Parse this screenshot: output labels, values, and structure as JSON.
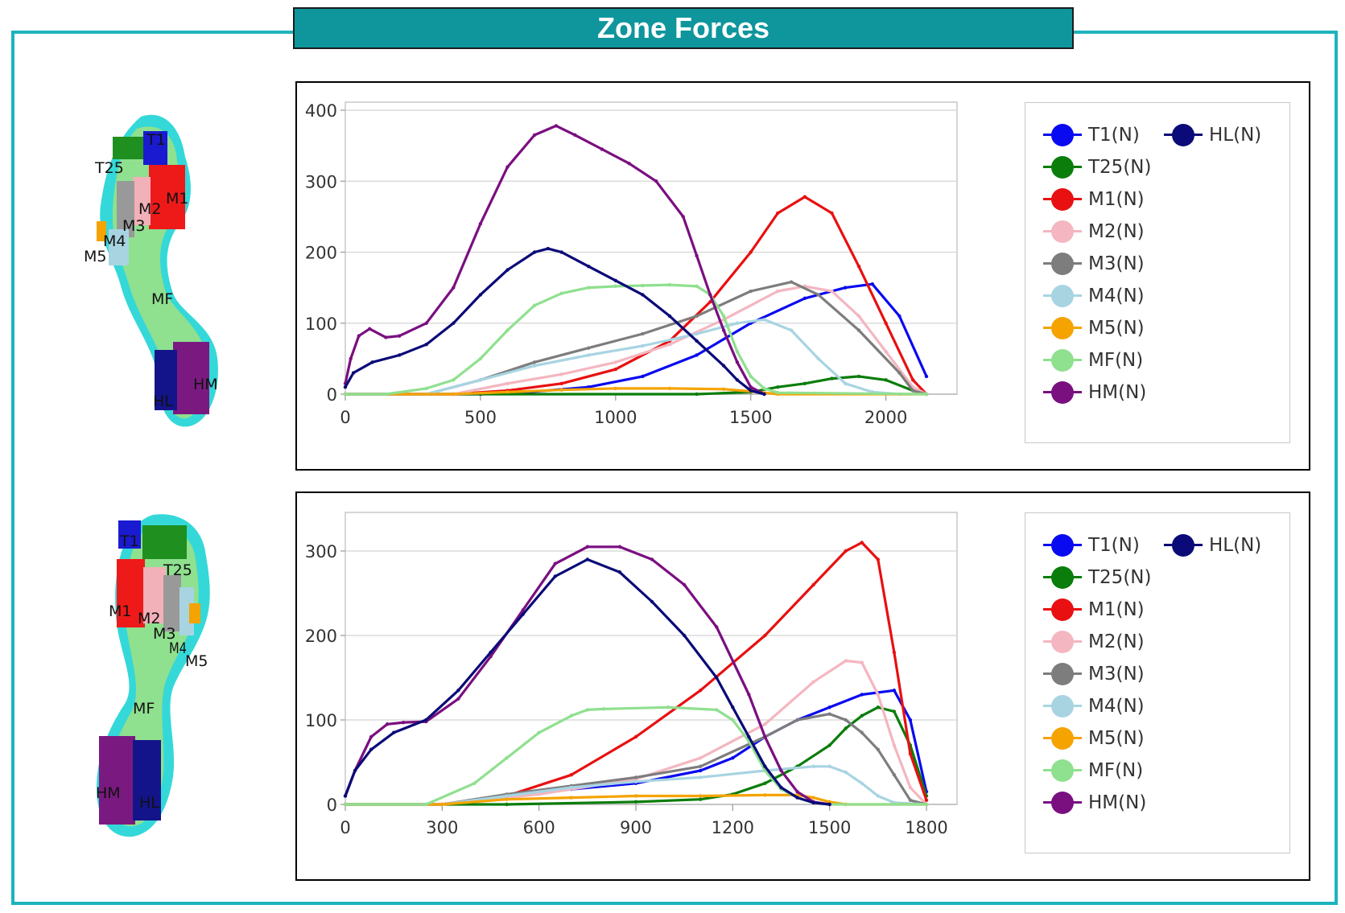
{
  "title": "Zone Forces",
  "colors": {
    "T1": "#0a0af0",
    "T25": "#0a7d0a",
    "M1": "#e81010",
    "M2": "#f4b6c0",
    "M3": "#7d7d7d",
    "M4": "#a8d4e2",
    "M5": "#f5a300",
    "MF": "#8fe08f",
    "HM": "#7a0f80",
    "HL": "#0a0a78"
  },
  "foot_top": {
    "zones": [
      "T1",
      "T25",
      "M1",
      "M2",
      "M3",
      "M4",
      "M5",
      "MF",
      "HM",
      "HL"
    ]
  },
  "foot_bottom": {
    "zones": [
      "T1",
      "T25",
      "M1",
      "M2",
      "M3",
      "M4",
      "M5",
      "MF",
      "HM",
      "HL"
    ],
    "m4_label": "M4"
  },
  "chart_data": [
    {
      "type": "line",
      "xlim": [
        0,
        2150
      ],
      "ylim": [
        0,
        400
      ],
      "xticks": [
        "0",
        "500",
        "1000",
        "1500",
        "2000"
      ],
      "yticks": [
        "0",
        "100",
        "200",
        "300",
        "400"
      ],
      "grid": true,
      "legend": "right",
      "series": [
        {
          "name": "T1(N)",
          "x": [
            0,
            500,
            650,
            900,
            1100,
            1300,
            1500,
            1700,
            1850,
            1950,
            2050,
            2150
          ],
          "y": [
            0,
            0,
            2,
            10,
            25,
            55,
            100,
            135,
            150,
            155,
            110,
            25
          ]
        },
        {
          "name": "T25(N)",
          "x": [
            0,
            1300,
            1500,
            1600,
            1700,
            1800,
            1900,
            2000,
            2100,
            2150
          ],
          "y": [
            0,
            0,
            3,
            10,
            15,
            22,
            25,
            20,
            5,
            0
          ]
        },
        {
          "name": "M1(N)",
          "x": [
            0,
            400,
            600,
            800,
            1000,
            1200,
            1350,
            1500,
            1600,
            1700,
            1800,
            1900,
            2000,
            2100,
            2150
          ],
          "y": [
            0,
            0,
            5,
            15,
            35,
            75,
            130,
            200,
            255,
            278,
            255,
            180,
            100,
            20,
            0
          ]
        },
        {
          "name": "M2(N)",
          "x": [
            0,
            400,
            600,
            800,
            1000,
            1200,
            1400,
            1600,
            1700,
            1800,
            1900,
            2000,
            2100,
            2150
          ],
          "y": [
            0,
            0,
            15,
            28,
            45,
            70,
            105,
            145,
            152,
            145,
            110,
            60,
            10,
            0
          ]
        },
        {
          "name": "M3(N)",
          "x": [
            0,
            300,
            500,
            700,
            900,
            1100,
            1300,
            1500,
            1650,
            1750,
            1900,
            2050,
            2100,
            2150
          ],
          "y": [
            0,
            0,
            20,
            45,
            65,
            85,
            110,
            145,
            158,
            140,
            90,
            30,
            5,
            0
          ]
        },
        {
          "name": "M4(N)",
          "x": [
            0,
            300,
            500,
            700,
            900,
            1100,
            1300,
            1450,
            1550,
            1650,
            1750,
            1850,
            1950,
            2050,
            2150
          ],
          "y": [
            0,
            0,
            20,
            40,
            55,
            68,
            85,
            100,
            105,
            90,
            50,
            15,
            3,
            0,
            0
          ]
        },
        {
          "name": "M5(N)",
          "x": [
            0,
            400,
            600,
            800,
            1000,
            1200,
            1400,
            1500,
            1600,
            2150
          ],
          "y": [
            0,
            0,
            3,
            6,
            8,
            8,
            7,
            4,
            0,
            0
          ]
        },
        {
          "name": "MF(N)",
          "x": [
            0,
            150,
            300,
            400,
            500,
            600,
            700,
            800,
            900,
            1000,
            1100,
            1200,
            1300,
            1350,
            1400,
            1450,
            1500,
            1550,
            1600,
            2150
          ],
          "y": [
            0,
            0,
            8,
            20,
            50,
            90,
            125,
            142,
            150,
            152,
            153,
            154,
            152,
            140,
            110,
            60,
            25,
            8,
            2,
            0
          ]
        },
        {
          "name": "HM(N)",
          "x": [
            0,
            20,
            50,
            90,
            150,
            200,
            300,
            400,
            500,
            600,
            700,
            780,
            850,
            950,
            1050,
            1150,
            1250,
            1300,
            1350,
            1400,
            1450,
            1500,
            1550
          ],
          "y": [
            15,
            50,
            82,
            92,
            80,
            82,
            100,
            150,
            240,
            320,
            365,
            378,
            365,
            345,
            325,
            300,
            250,
            195,
            140,
            90,
            45,
            10,
            0
          ]
        },
        {
          "name": "HL(N)",
          "x": [
            0,
            30,
            100,
            200,
            300,
            400,
            500,
            600,
            700,
            750,
            800,
            900,
            1000,
            1100,
            1200,
            1300,
            1400,
            1450,
            1500,
            1550
          ],
          "y": [
            10,
            30,
            45,
            55,
            70,
            100,
            140,
            175,
            200,
            205,
            200,
            180,
            160,
            140,
            110,
            75,
            40,
            20,
            5,
            0
          ]
        }
      ]
    },
    {
      "type": "line",
      "xlim": [
        0,
        1800
      ],
      "ylim": [
        0,
        300
      ],
      "xticks": [
        "0",
        "300",
        "600",
        "900",
        "1200",
        "1500",
        "1800"
      ],
      "yticks": [
        "0",
        "100",
        "200",
        "300"
      ],
      "grid": true,
      "legend": "right",
      "series": [
        {
          "name": "T1(N)",
          "x": [
            0,
            300,
            500,
            700,
            900,
            1100,
            1200,
            1300,
            1400,
            1500,
            1600,
            1700,
            1750,
            1800
          ],
          "y": [
            0,
            0,
            10,
            18,
            25,
            40,
            55,
            80,
            100,
            115,
            130,
            135,
            100,
            15
          ]
        },
        {
          "name": "T25(N)",
          "x": [
            0,
            500,
            900,
            1100,
            1200,
            1300,
            1400,
            1500,
            1550,
            1600,
            1650,
            1700,
            1750,
            1800
          ],
          "y": [
            0,
            0,
            3,
            6,
            12,
            25,
            45,
            70,
            90,
            105,
            115,
            110,
            70,
            10
          ]
        },
        {
          "name": "M1(N)",
          "x": [
            0,
            300,
            500,
            700,
            900,
            1100,
            1300,
            1450,
            1550,
            1600,
            1650,
            1700,
            1750,
            1800
          ],
          "y": [
            0,
            0,
            10,
            35,
            80,
            135,
            200,
            260,
            300,
            310,
            290,
            180,
            60,
            5
          ]
        },
        {
          "name": "M2(N)",
          "x": [
            0,
            300,
            600,
            900,
            1100,
            1300,
            1450,
            1550,
            1600,
            1650,
            1700,
            1750,
            1800
          ],
          "y": [
            0,
            0,
            12,
            30,
            55,
            95,
            145,
            170,
            168,
            130,
            70,
            20,
            0
          ]
        },
        {
          "name": "M3(N)",
          "x": [
            0,
            300,
            500,
            700,
            900,
            1100,
            1300,
            1400,
            1500,
            1550,
            1600,
            1650,
            1700,
            1750,
            1800
          ],
          "y": [
            0,
            0,
            12,
            22,
            32,
            45,
            80,
            100,
            107,
            100,
            85,
            65,
            35,
            5,
            0
          ]
        },
        {
          "name": "M4(N)",
          "x": [
            0,
            300,
            500,
            700,
            900,
            1100,
            1300,
            1450,
            1500,
            1550,
            1600,
            1650,
            1700,
            1800
          ],
          "y": [
            0,
            0,
            10,
            20,
            27,
            32,
            40,
            45,
            45,
            38,
            25,
            10,
            2,
            0
          ]
        },
        {
          "name": "M5(N)",
          "x": [
            0,
            300,
            500,
            700,
            900,
            1100,
            1300,
            1400,
            1450,
            1500,
            1550,
            1800
          ],
          "y": [
            0,
            0,
            6,
            8,
            10,
            10,
            11,
            11,
            8,
            3,
            0,
            0
          ]
        },
        {
          "name": "MF(N)",
          "x": [
            0,
            250,
            400,
            500,
            600,
            700,
            750,
            800,
            1000,
            1150,
            1200,
            1250,
            1300,
            1350,
            1400,
            1450,
            1500,
            1800
          ],
          "y": [
            0,
            0,
            25,
            55,
            85,
            105,
            112,
            113,
            115,
            112,
            100,
            75,
            40,
            18,
            8,
            2,
            0,
            0
          ]
        },
        {
          "name": "HM(N)",
          "x": [
            0,
            30,
            80,
            130,
            180,
            250,
            350,
            450,
            550,
            650,
            750,
            850,
            950,
            1050,
            1150,
            1250,
            1300,
            1350,
            1400,
            1450,
            1500
          ],
          "y": [
            10,
            40,
            80,
            95,
            97,
            98,
            125,
            175,
            230,
            285,
            305,
            305,
            290,
            260,
            210,
            130,
            80,
            40,
            15,
            3,
            0
          ]
        },
        {
          "name": "HL(N)",
          "x": [
            0,
            30,
            80,
            150,
            250,
            350,
            450,
            550,
            650,
            750,
            850,
            950,
            1050,
            1150,
            1200,
            1250,
            1300,
            1350,
            1400,
            1450,
            1500
          ],
          "y": [
            10,
            40,
            65,
            85,
            100,
            135,
            180,
            225,
            270,
            290,
            275,
            240,
            200,
            150,
            115,
            80,
            45,
            20,
            8,
            2,
            0
          ]
        }
      ]
    }
  ]
}
